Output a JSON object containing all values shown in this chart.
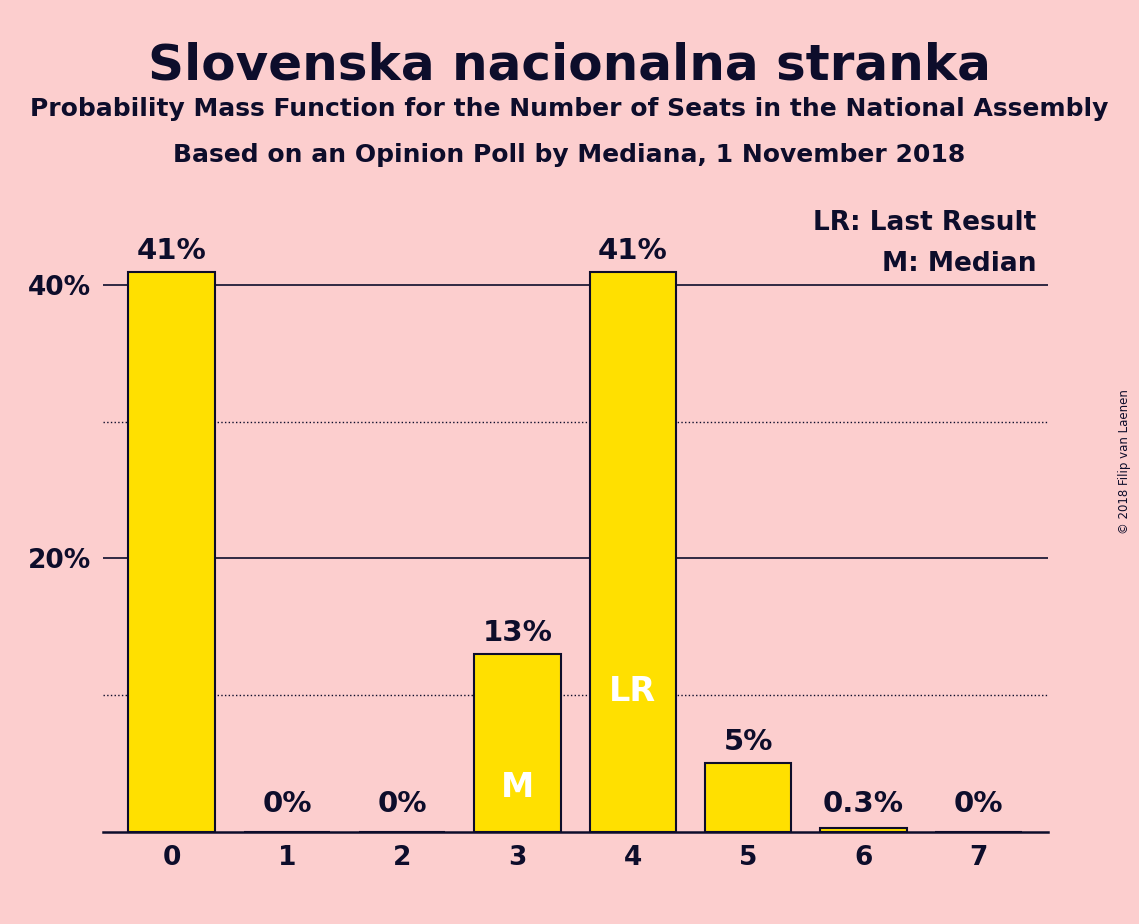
{
  "title": "Slovenska nacionalna stranka",
  "subtitle1": "Probability Mass Function for the Number of Seats in the National Assembly",
  "subtitle2": "Based on an Opinion Poll by Mediana, 1 November 2018",
  "copyright": "© 2018 Filip van Laenen",
  "categories": [
    0,
    1,
    2,
    3,
    4,
    5,
    6,
    7
  ],
  "values": [
    41,
    0,
    0,
    13,
    41,
    5,
    0.3,
    0
  ],
  "bar_color": "#FFE000",
  "bar_edge_color": "#0d0d2b",
  "background_color": "#FCCECE",
  "text_color": "#0d0d2b",
  "bar_labels": [
    "41%",
    "0%",
    "0%",
    "13%",
    "41%",
    "5%",
    "0.3%",
    "0%"
  ],
  "inside_labels": [
    {
      "bar_index": 3,
      "text": "M",
      "color": "#FFFFFF"
    },
    {
      "bar_index": 4,
      "text": "LR",
      "color": "#FFFFFF"
    }
  ],
  "legend_texts": [
    "LR: Last Result",
    "M: Median"
  ],
  "yticks": [
    0,
    10,
    20,
    30,
    40
  ],
  "ytick_labels": [
    "",
    "",
    "20%",
    "",
    "40%"
  ],
  "solid_gridlines": [
    20,
    40
  ],
  "dotted_gridlines": [
    10,
    30
  ],
  "ylim": [
    0,
    46
  ],
  "title_fontsize": 36,
  "subtitle_fontsize": 18,
  "bar_label_fontsize": 21,
  "axis_label_fontsize": 19,
  "legend_fontsize": 19,
  "inside_label_fontsize": 24,
  "bar_width": 0.75
}
